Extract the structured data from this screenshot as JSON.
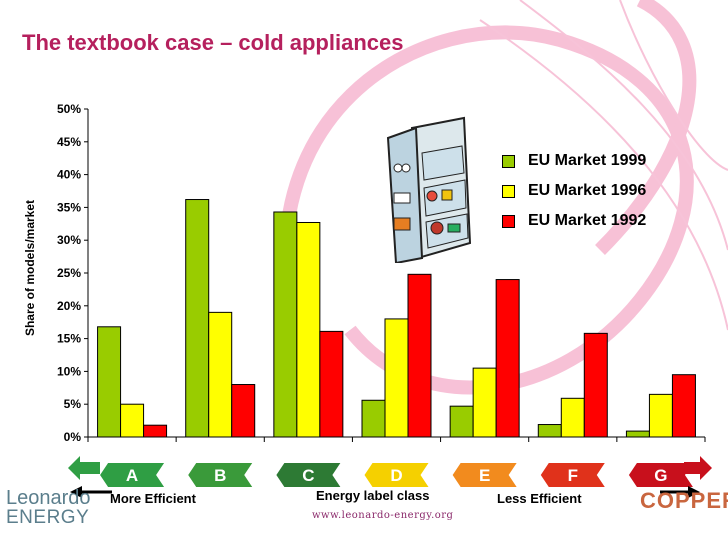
{
  "slide": {
    "title": "The textbook case – cold appliances",
    "footer_url": "www.leonardo-energy.org",
    "logo_left": [
      "Leonardo",
      "ENERGY"
    ],
    "logo_right": "COPPER",
    "more_efficient": "More Efficient",
    "less_efficient": "Less Efficient"
  },
  "chart_data": {
    "type": "bar",
    "title": "",
    "xlabel": "Energy label class",
    "ylabel": "Share of models/market",
    "ylim": [
      0,
      0.5
    ],
    "yticks": [
      "0%",
      "5%",
      "10%",
      "15%",
      "20%",
      "25%",
      "30%",
      "35%",
      "40%",
      "45%",
      "50%"
    ],
    "categories": [
      "A",
      "B",
      "C",
      "D",
      "E",
      "F",
      "G"
    ],
    "category_colors": [
      "#2f9e44",
      "#3a9a3a",
      "#2d7a34",
      "#f5d000",
      "#f28b1e",
      "#e0321b",
      "#c8101c"
    ],
    "legend_position": "top-right",
    "grid": false,
    "series": [
      {
        "name": "EU Market 1999",
        "color": "#99cc00",
        "values": [
          0.168,
          0.362,
          0.343,
          0.056,
          0.047,
          0.019,
          0.009
        ]
      },
      {
        "name": "EU Market 1996",
        "color": "#ffff00",
        "values": [
          0.05,
          0.19,
          0.327,
          0.18,
          0.105,
          0.059,
          0.065
        ]
      },
      {
        "name": "EU Market 1992",
        "color": "#ff0000",
        "values": [
          0.018,
          0.08,
          0.161,
          0.248,
          0.24,
          0.158,
          0.095
        ]
      }
    ]
  }
}
